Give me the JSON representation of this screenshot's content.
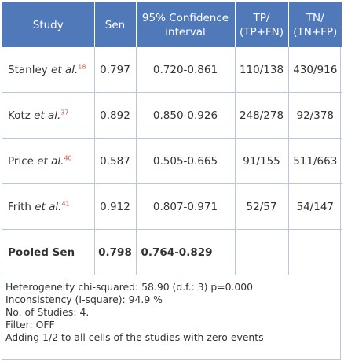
{
  "table": {
    "headers": [
      [
        "Study"
      ],
      [
        "Sen"
      ],
      [
        "95% Confidence",
        "interval"
      ],
      [
        "TP/",
        "(TP+FN)"
      ],
      [
        "TN/",
        "(TN+FP)"
      ]
    ],
    "rows": [
      {
        "author": "Stanley",
        "etal": "et al.",
        "ref": "18",
        "sen": "0.797",
        "ci": "0.720-0.861",
        "tp": "110/138",
        "tn": "430/916"
      },
      {
        "author": "Kotz",
        "etal": "et al.",
        "ref": "37",
        "sen": "0.892",
        "ci": "0.850-0.926",
        "tp": "248/278",
        "tn": "92/378"
      },
      {
        "author": "Price",
        "etal": "et al.",
        "ref": "40",
        "sen": "0.587",
        "ci": "0.505-0.665",
        "tp": "91/155",
        "tn": "511/663"
      },
      {
        "author": "Frith",
        "etal": "et al.",
        "ref": "41",
        "sen": "0.912",
        "ci": "0.807-0.971",
        "tp": "52/57",
        "tn": "54/147"
      }
    ],
    "pooled": {
      "label": "Pooled Sen",
      "sen": "0.798",
      "ci": "0.764-0.829"
    }
  },
  "footer": [
    "Heterogeneity chi-squared: 58.90 (d.f.: 3) p=0.000",
    "Inconsistency (I-square): 94.9 %",
    "No. of Studies: 4.",
    "Filter: OFF",
    "Adding 1/2 to all cells of the studies with zero events"
  ]
}
